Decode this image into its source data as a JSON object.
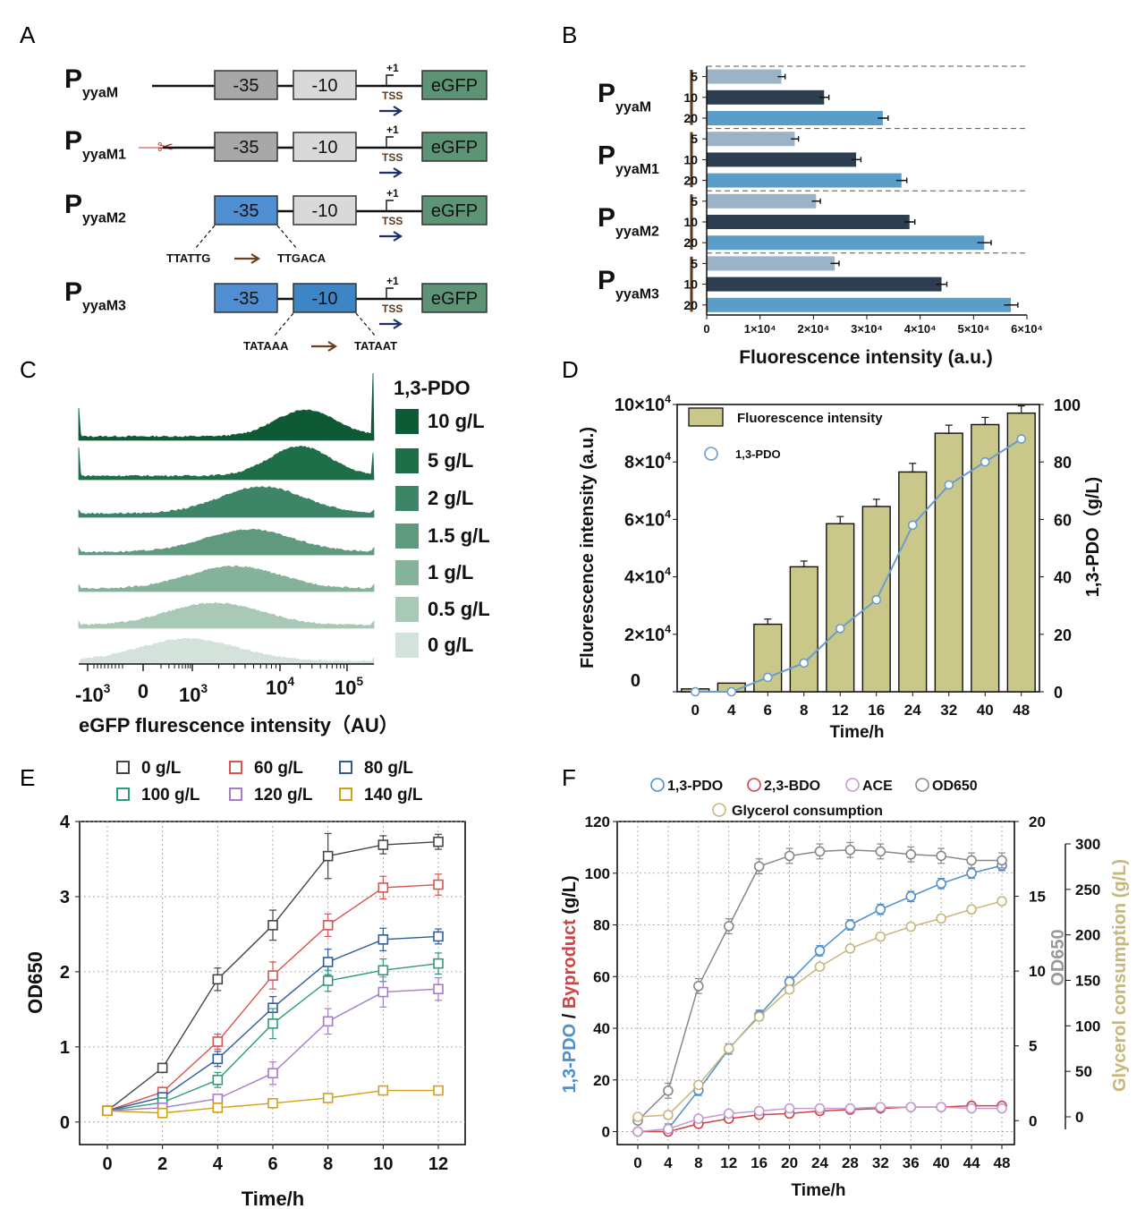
{
  "panelA": {
    "label": "A",
    "constructs": [
      {
        "p": "P",
        "sub": "yyaM",
        "box35": "-35",
        "box10": "-10",
        "plus1": "+1",
        "tss": "TSS",
        "gfp": "eGFP",
        "scissor": false,
        "seqFrom": "",
        "seqTo": ""
      },
      {
        "p": "P",
        "sub": "yyaM1",
        "box35": "-35",
        "box10": "-10",
        "plus1": "+1",
        "tss": "TSS",
        "gfp": "eGFP",
        "scissor": true,
        "seqFrom": "",
        "seqTo": ""
      },
      {
        "p": "P",
        "sub": "yyaM2",
        "box35": "-35",
        "box10": "-10",
        "plus1": "+1",
        "tss": "TSS",
        "gfp": "eGFP",
        "scissor": false,
        "seqFrom": "TTATTG",
        "seqTo": "TTGACA"
      },
      {
        "p": "P",
        "sub": "yyaM3",
        "box35": "-35",
        "box10": "-10",
        "plus1": "+1",
        "tss": "TSS",
        "gfp": "eGFP",
        "scissor": false,
        "seqFrom": "TATAAA",
        "seqTo": "TATAAT"
      }
    ],
    "colors": {
      "box35_grey": "#a8a8a8",
      "box10_grey": "#d9d9d9",
      "mutated_blue": "#4f8fd1",
      "gfp_green": "#5e9476",
      "tss_arrow": "#1f2f6b",
      "seq_arrow": "#6b3f1f",
      "scissor": "#c0392b"
    }
  },
  "chart_data": [
    {
      "panel": "B",
      "type": "bar",
      "orientation": "horizontal",
      "xlabel": "Fluorescence intensity (a.u.)",
      "xlim": [
        0,
        60000
      ],
      "xticks": [
        "0",
        "1×10⁴",
        "2×10⁴",
        "3×10⁴",
        "4×10⁴",
        "5×10⁴",
        "6×10⁴"
      ],
      "groups": [
        {
          "p": "P",
          "sub": "yyaM",
          "categories": [
            "5",
            "10",
            "20"
          ],
          "values": [
            14000,
            22000,
            33000
          ],
          "errors": [
            700,
            900,
            1000
          ]
        },
        {
          "p": "P",
          "sub": "yyaM1",
          "categories": [
            "5",
            "10",
            "20"
          ],
          "values": [
            16500,
            28000,
            36500
          ],
          "errors": [
            700,
            900,
            1000
          ]
        },
        {
          "p": "P",
          "sub": "yyaM2",
          "categories": [
            "5",
            "10",
            "20"
          ],
          "values": [
            20500,
            38000,
            52000
          ],
          "errors": [
            800,
            1000,
            1300
          ]
        },
        {
          "p": "P",
          "sub": "yyaM3",
          "categories": [
            "5",
            "10",
            "20"
          ],
          "values": [
            24000,
            44000,
            57000
          ],
          "errors": [
            800,
            1000,
            1300
          ]
        }
      ],
      "colors": [
        "#9bb3c7",
        "#2c3e50",
        "#5b9dc9"
      ]
    },
    {
      "panel": "C",
      "type": "area",
      "xlabel": "eGFP flurescence intensity（AU）",
      "xticks": [
        "-10³",
        "0",
        "10³",
        "10⁴",
        "10⁵"
      ],
      "legend_title": "1,3-PDO",
      "series": [
        {
          "name": "10 g/L",
          "peak": 30000,
          "color": "#0e5a35"
        },
        {
          "name": "5 g/L",
          "peak": 25000,
          "color": "#1e6e47"
        },
        {
          "name": "2 g/L",
          "peak": 8000,
          "color": "#3e8466"
        },
        {
          "name": "1.5 g/L",
          "peak": 5500,
          "color": "#5f9a7e"
        },
        {
          "name": "1 g/L",
          "peak": 3500,
          "color": "#84b29b"
        },
        {
          "name": "0.5 g/L",
          "peak": 2000,
          "color": "#a9c9b7"
        },
        {
          "name": "0 g/L",
          "peak": 600,
          "color": "#d3e2da"
        }
      ]
    },
    {
      "panel": "D",
      "type": "bar",
      "categories": [
        "0",
        "4",
        "6",
        "8",
        "12",
        "16",
        "24",
        "32",
        "40",
        "48"
      ],
      "xlabel": "Time/h",
      "ylabel": "Fluorescence intensity (a.u.)",
      "ylim": [
        0,
        100000
      ],
      "yticks": [
        "0",
        "2×10⁴",
        "4×10⁴",
        "6×10⁴",
        "8×10⁴",
        "10×10⁴"
      ],
      "y2label": "1,3-PDO（g/L)",
      "y2lim": [
        0,
        100
      ],
      "y2ticks": [
        "0",
        "20",
        "40",
        "60",
        "80",
        "100"
      ],
      "series": [
        {
          "name": "Fluorescence intensity",
          "kind": "bar",
          "values": [
            1000,
            3000,
            23500,
            43500,
            58500,
            64500,
            76500,
            90000,
            93000,
            97000
          ],
          "errors": [
            0,
            0,
            1800,
            2000,
            2500,
            2500,
            3000,
            2800,
            2500,
            2500
          ],
          "color": "#c9c88a"
        },
        {
          "name": "1,3-PDO",
          "kind": "line",
          "axis": "right",
          "values": [
            0,
            0,
            5,
            10,
            22,
            32,
            58,
            72,
            80,
            88
          ],
          "color": "#6a9ccc"
        }
      ]
    },
    {
      "panel": "E",
      "type": "line",
      "x": [
        0,
        2,
        4,
        6,
        8,
        10,
        12
      ],
      "xlabel": "Time/h",
      "ylabel": "OD650",
      "ylim": [
        -0.3,
        4
      ],
      "yticks": [
        0,
        1,
        2,
        3,
        4
      ],
      "grid": true,
      "series": [
        {
          "name": "0 g/L",
          "values": [
            0.15,
            0.72,
            1.9,
            2.62,
            3.54,
            3.69,
            3.73
          ],
          "errors": [
            0.03,
            0.05,
            0.15,
            0.2,
            0.3,
            0.12,
            0.1
          ],
          "color": "#444444"
        },
        {
          "name": "60 g/L",
          "values": [
            0.15,
            0.4,
            1.07,
            1.95,
            2.62,
            3.12,
            3.16
          ],
          "errors": [
            0.03,
            0.05,
            0.1,
            0.18,
            0.15,
            0.15,
            0.14
          ],
          "color": "#d9534f"
        },
        {
          "name": "80 g/L",
          "values": [
            0.15,
            0.33,
            0.84,
            1.52,
            2.13,
            2.43,
            2.47
          ],
          "errors": [
            0.03,
            0.05,
            0.1,
            0.15,
            0.17,
            0.15,
            0.1
          ],
          "color": "#2e5d9e"
        },
        {
          "name": "100 g/L",
          "values": [
            0.15,
            0.26,
            0.56,
            1.31,
            1.88,
            2.02,
            2.11
          ],
          "errors": [
            0.03,
            0.04,
            0.1,
            0.2,
            0.14,
            0.15,
            0.14
          ],
          "color": "#2e9b7a"
        },
        {
          "name": "120 g/L",
          "values": [
            0.15,
            0.19,
            0.31,
            0.65,
            1.34,
            1.73,
            1.77
          ],
          "errors": [
            0.03,
            0.03,
            0.04,
            0.15,
            0.17,
            0.2,
            0.15
          ],
          "color": "#a77cc6"
        },
        {
          "name": "140 g/L",
          "values": [
            0.15,
            0.12,
            0.19,
            0.25,
            0.32,
            0.42,
            0.42
          ],
          "errors": [
            0.02,
            0.02,
            0.02,
            0.02,
            0.02,
            0.03,
            0.03
          ],
          "color": "#d4a017"
        }
      ]
    },
    {
      "panel": "F",
      "type": "line",
      "x": [
        0,
        4,
        8,
        12,
        16,
        20,
        24,
        28,
        32,
        36,
        40,
        44,
        48
      ],
      "xlabel": "Time/h",
      "ylabel": "1,3-PDO / Byproduct (g/L)",
      "ylim": [
        -5,
        120
      ],
      "yticks": [
        0,
        20,
        40,
        60,
        80,
        100,
        120
      ],
      "y2label": "OD650",
      "y2lim": [
        -1.6,
        20
      ],
      "y2ticks": [
        0,
        5,
        10,
        15,
        20
      ],
      "y3label": "Glycerol consumption (g/L)",
      "y3lim": [
        -25,
        320
      ],
      "y3ticks": [
        0,
        50,
        100,
        150,
        200,
        250,
        300
      ],
      "grid": true,
      "series": [
        {
          "name": "1,3-PDO",
          "axis": "left",
          "values": [
            0,
            1,
            16,
            32,
            45,
            58,
            70,
            80,
            86,
            91,
            96,
            100,
            103
          ],
          "color": "#4f8fcb"
        },
        {
          "name": "2,3-BDO",
          "axis": "left",
          "values": [
            0,
            0,
            3,
            5,
            6.5,
            7,
            8,
            8.5,
            9,
            9.5,
            9.5,
            10,
            10
          ],
          "color": "#cc4444"
        },
        {
          "name": "ACE",
          "axis": "left",
          "values": [
            0,
            1,
            5,
            7,
            8,
            9,
            9,
            9,
            9.5,
            9.5,
            9.5,
            9,
            9
          ],
          "color": "#c49ad6"
        },
        {
          "name": "OD650",
          "axis": "right",
          "values": [
            0,
            2,
            9,
            13,
            17,
            17.7,
            18,
            18.1,
            18,
            17.8,
            17.7,
            17.4,
            17.4
          ],
          "color": "#888888"
        },
        {
          "name": "Glycerol consumption",
          "axis": "right2",
          "values": [
            0,
            2,
            35,
            75,
            110,
            140,
            165,
            185,
            198,
            209,
            218,
            228,
            237
          ],
          "color": "#c8b67a"
        }
      ]
    }
  ],
  "labels": {
    "panelB": "B",
    "panelC": "C",
    "panelD": "D",
    "panelE": "E",
    "panelF": "F",
    "F_legend_row1": [
      "1,3-PDO",
      "2,3-BDO",
      "ACE",
      "OD650"
    ],
    "F_legend_row2": "Glycerol consumption",
    "F_ylabel_part1": "1,3-PDO",
    "F_ylabel_sep": " / ",
    "F_ylabel_part2": "Byproduct",
    "F_ylabel_unit": " (g/L)"
  }
}
